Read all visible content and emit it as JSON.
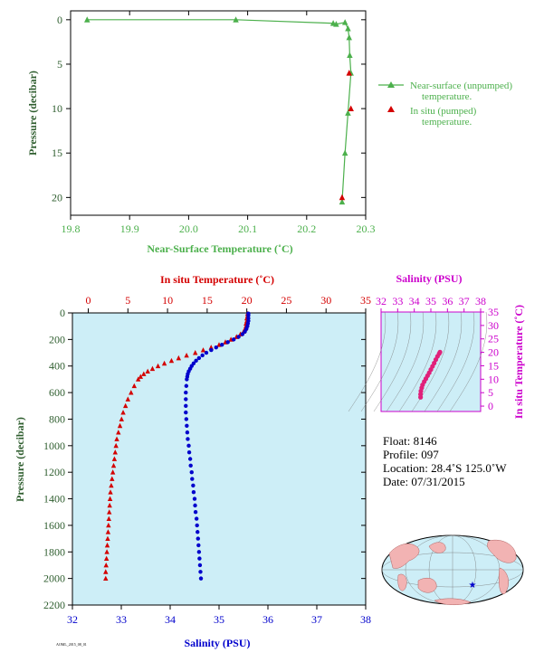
{
  "chart_data": [
    {
      "type": "line",
      "xlabel": "Near-Surface Temperature (˚C)",
      "ylabel": "Pressure (decibar)",
      "xlim": [
        19.8,
        20.3
      ],
      "ylim": [
        22,
        -1
      ],
      "xticks": [
        "19.8",
        "19.9",
        "20.0",
        "20.1",
        "20.2",
        "20.3"
      ],
      "yticks": [
        "0",
        "5",
        "10",
        "15",
        "20"
      ],
      "series": [
        {
          "name": "Near-surface (unpumped) temperature.",
          "color": "#4cb04c",
          "marker": "triangle",
          "x": [
            19.828,
            20.08,
            20.245,
            20.25,
            20.265,
            20.27,
            20.272,
            20.273,
            20.275,
            20.27,
            20.265,
            20.26
          ],
          "y": [
            0.0,
            0.0,
            0.4,
            0.5,
            0.3,
            1.0,
            2.0,
            4.0,
            6.0,
            10.5,
            15.0,
            20.5
          ]
        },
        {
          "name": "In situ (pumped) temperature.",
          "color": "#d40000",
          "marker": "triangle",
          "x": [
            20.272,
            20.275,
            20.26
          ],
          "y": [
            6.0,
            10.0,
            20.0
          ]
        }
      ],
      "legend": "right"
    },
    {
      "type": "scatter",
      "top_label": "In situ Temperature (˚C)",
      "bottom_label": "Salinity (PSU)",
      "ylabel": "Pressure (decibar)",
      "temp_lim": [
        -2,
        35
      ],
      "sal_lim": [
        32,
        38
      ],
      "ylim": [
        2200,
        0
      ],
      "temp_ticks": [
        "0",
        "5",
        "10",
        "15",
        "20",
        "25",
        "30",
        "35"
      ],
      "sal_ticks": [
        "32",
        "33",
        "34",
        "35",
        "36",
        "37",
        "38"
      ],
      "yticks": [
        "0",
        "200",
        "400",
        "600",
        "800",
        "1000",
        "1200",
        "1400",
        "1600",
        "1800",
        "2000",
        "2200"
      ],
      "series": [
        {
          "name": "Temperature",
          "color": "#d40000",
          "pressure": [
            5,
            20,
            40,
            60,
            80,
            100,
            120,
            140,
            160,
            180,
            200,
            220,
            240,
            260,
            280,
            300,
            320,
            340,
            360,
            380,
            400,
            420,
            440,
            460,
            480,
            500,
            550,
            600,
            650,
            700,
            750,
            800,
            850,
            900,
            950,
            1000,
            1050,
            1100,
            1150,
            1200,
            1250,
            1300,
            1350,
            1400,
            1450,
            1500,
            1550,
            1600,
            1650,
            1700,
            1750,
            1800,
            1850,
            1900,
            1950,
            2000
          ],
          "values": [
            20.1,
            20.1,
            20.0,
            20.0,
            19.9,
            19.9,
            19.8,
            19.6,
            19.2,
            18.7,
            18.0,
            17.3,
            16.5,
            15.5,
            14.5,
            13.5,
            12.4,
            11.4,
            10.5,
            9.6,
            8.8,
            8.1,
            7.5,
            7.0,
            6.6,
            6.3,
            5.8,
            5.4,
            5.0,
            4.7,
            4.4,
            4.2,
            4.0,
            3.8,
            3.6,
            3.5,
            3.4,
            3.3,
            3.2,
            3.1,
            3.0,
            2.9,
            2.8,
            2.75,
            2.7,
            2.65,
            2.6,
            2.55,
            2.5,
            2.45,
            2.4,
            2.35,
            2.3,
            2.25,
            2.2,
            2.2
          ]
        },
        {
          "name": "Salinity",
          "color": "#0000cc",
          "pressure": [
            5,
            20,
            40,
            60,
            80,
            100,
            120,
            140,
            160,
            180,
            200,
            220,
            240,
            260,
            280,
            300,
            320,
            340,
            360,
            380,
            400,
            420,
            440,
            460,
            480,
            500,
            550,
            600,
            650,
            700,
            750,
            800,
            850,
            900,
            950,
            1000,
            1050,
            1100,
            1150,
            1200,
            1250,
            1300,
            1350,
            1400,
            1450,
            1500,
            1550,
            1600,
            1650,
            1700,
            1750,
            1800,
            1850,
            1900,
            1950,
            2000
          ],
          "values": [
            35.6,
            35.6,
            35.6,
            35.6,
            35.59,
            35.58,
            35.56,
            35.53,
            35.48,
            35.4,
            35.3,
            35.18,
            35.06,
            34.94,
            34.84,
            34.74,
            34.66,
            34.59,
            34.53,
            34.48,
            34.44,
            34.41,
            34.38,
            34.36,
            34.35,
            34.34,
            34.33,
            34.32,
            34.32,
            34.32,
            34.32,
            34.33,
            34.34,
            34.35,
            34.36,
            34.38,
            34.39,
            34.41,
            34.42,
            34.44,
            34.45,
            34.47,
            34.48,
            34.5,
            34.51,
            34.52,
            34.54,
            34.55,
            34.56,
            34.57,
            34.58,
            34.59,
            34.6,
            34.61,
            34.62,
            34.63
          ]
        }
      ]
    },
    {
      "type": "scatter",
      "top_label": "Salinity (PSU)",
      "ylabel": "In situ Temperature (˚C)",
      "xlim": [
        32,
        38
      ],
      "ylim": [
        -2,
        35
      ],
      "xticks": [
        "32",
        "33",
        "34",
        "35",
        "36",
        "37",
        "38"
      ],
      "yticks": [
        "0",
        "5",
        "10",
        "15",
        "20",
        "25",
        "30",
        "35"
      ],
      "series": [
        {
          "name": "T-S",
          "color": "#e0207a",
          "x": [
            35.55,
            35.5,
            35.4,
            35.3,
            35.2,
            35.1,
            35.0,
            34.9,
            34.8,
            34.7,
            34.6,
            34.5,
            34.45,
            34.4,
            34.38,
            34.38
          ],
          "y": [
            20.1,
            19.5,
            18.5,
            17.3,
            16.0,
            14.8,
            13.6,
            12.4,
            11.3,
            10.2,
            9.1,
            7.9,
            6.8,
            5.6,
            4.4,
            3.3
          ]
        }
      ]
    }
  ],
  "float_info": {
    "float": "Float:  8146",
    "profile": "Profile:  097",
    "location": "Location:  28.4˚S  125.0˚W",
    "date": "Date:  07/31/2015"
  },
  "footer": {
    "code": "AOML_2015_08_01"
  },
  "colors": {
    "green": "#4cb04c",
    "dark_green": "#2f5e2f",
    "red": "#d40000",
    "blue": "#0000cc",
    "magenta": "#cc00cc",
    "panel_bg": "#cdeef7"
  }
}
